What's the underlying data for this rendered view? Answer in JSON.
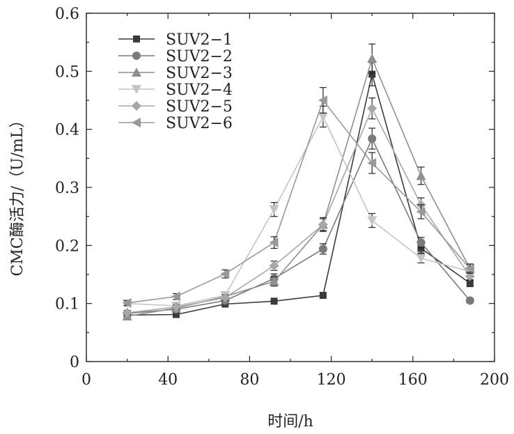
{
  "chart_data": {
    "type": "line",
    "title": "",
    "xlabel": "时间/h",
    "ylabel": "CMC酶活力/（U/mL）",
    "xlim": [
      0,
      200
    ],
    "ylim": [
      0,
      0.6
    ],
    "xticks": [
      0,
      40,
      80,
      120,
      160,
      200
    ],
    "yticks": [
      0,
      0.1,
      0.2,
      0.3,
      0.4,
      0.5,
      0.6
    ],
    "xtick_labels": [
      "0",
      "40",
      "80",
      "120",
      "160",
      "200"
    ],
    "ytick_labels": [
      "0",
      "0.1",
      "0.2",
      "0.3",
      "0.4",
      "0.5",
      "0.6"
    ],
    "grid": false,
    "legend_position": "top-left",
    "x": [
      20,
      44,
      68,
      92,
      116,
      140,
      164,
      188
    ],
    "series": [
      {
        "name": "SUV2−1",
        "marker": "square",
        "color": "#3a3a3a",
        "values": [
          0.08,
          0.081,
          0.099,
          0.104,
          0.114,
          0.495,
          0.195,
          0.135
        ],
        "errors": [
          0.004,
          0.004,
          0.004,
          0.004,
          0.004,
          0.02,
          0.008,
          0.006
        ]
      },
      {
        "name": "SUV2−2",
        "marker": "circle",
        "color": "#7a7a7a",
        "values": [
          0.083,
          0.09,
          0.105,
          0.143,
          0.194,
          0.384,
          0.205,
          0.105
        ],
        "errors": [
          0.004,
          0.004,
          0.005,
          0.008,
          0.009,
          0.018,
          0.009,
          0.004
        ]
      },
      {
        "name": "SUV2−3",
        "marker": "triangle-up",
        "color": "#8f8f8f",
        "values": [
          0.078,
          0.092,
          0.112,
          0.138,
          0.236,
          0.522,
          0.32,
          0.16
        ],
        "errors": [
          0.004,
          0.004,
          0.005,
          0.008,
          0.01,
          0.025,
          0.015,
          0.008
        ]
      },
      {
        "name": "SUV2−4",
        "marker": "triangle-down",
        "color": "#c4c4c4",
        "values": [
          0.1,
          0.096,
          0.114,
          0.262,
          0.422,
          0.243,
          0.178,
          0.155
        ],
        "errors": [
          0.004,
          0.004,
          0.005,
          0.012,
          0.018,
          0.012,
          0.008,
          0.007
        ]
      },
      {
        "name": "SUV2−5",
        "marker": "diamond",
        "color": "#a7a7a7",
        "values": [
          0.084,
          0.094,
          0.11,
          0.165,
          0.236,
          0.436,
          0.27,
          0.147
        ],
        "errors": [
          0.004,
          0.004,
          0.005,
          0.008,
          0.012,
          0.018,
          0.012,
          0.007
        ]
      },
      {
        "name": "SUV2−6",
        "marker": "triangle-left",
        "color": "#999999",
        "values": [
          0.101,
          0.112,
          0.151,
          0.205,
          0.45,
          0.342,
          0.258,
          0.16
        ],
        "errors": [
          0.004,
          0.005,
          0.007,
          0.01,
          0.022,
          0.018,
          0.012,
          0.008
        ]
      }
    ]
  }
}
